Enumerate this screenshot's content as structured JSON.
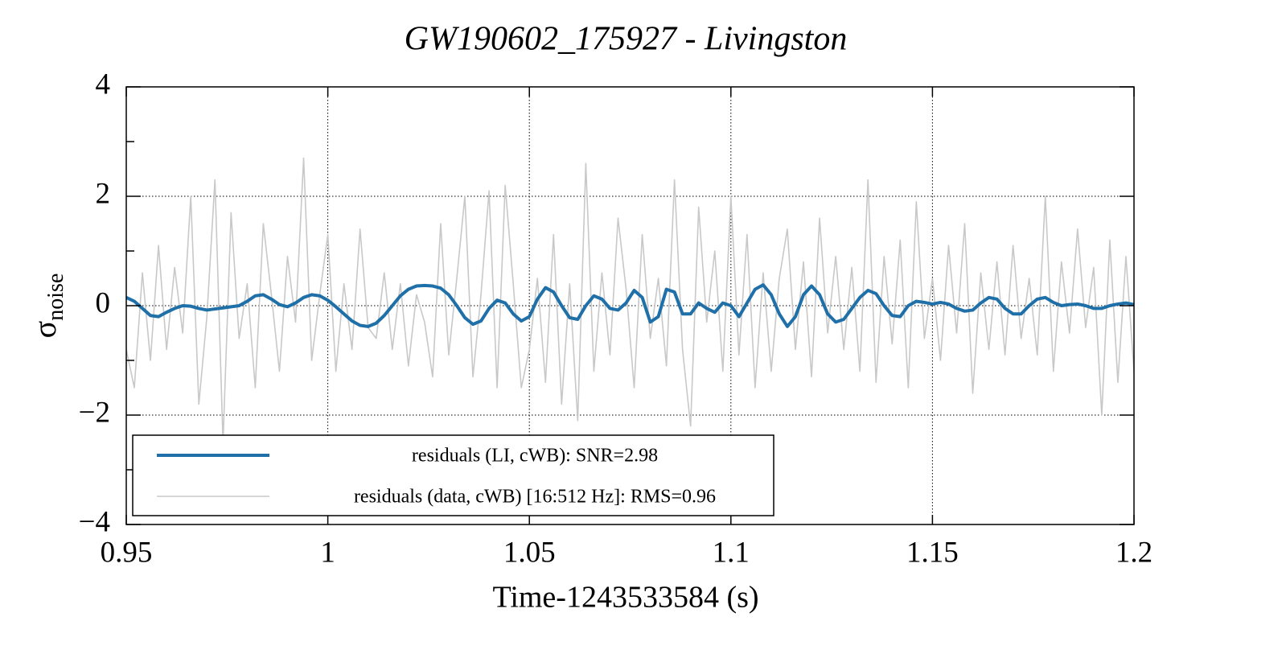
{
  "chart_data": {
    "type": "line",
    "title": "GW190602_175927 - Livingston",
    "xlabel": "Time-1243533584 (s)",
    "ylabel": "σ",
    "ylabel_subscript": "noise",
    "xlim": [
      0.95,
      1.2
    ],
    "xticks": [
      0.95,
      1,
      1.05,
      1.1,
      1.15,
      1.2
    ],
    "ylim": [
      -4,
      4
    ],
    "yticks": [
      {
        "value": -4,
        "label": "−4"
      },
      {
        "value": -2,
        "label": "−2"
      },
      0,
      2,
      4
    ],
    "yminor": [
      -3,
      -1,
      1,
      3
    ],
    "grid": true,
    "legend": "lower left",
    "x": [
      0.95,
      0.952,
      0.954,
      0.956,
      0.958,
      0.96,
      0.962,
      0.964,
      0.966,
      0.968,
      0.97,
      0.972,
      0.974,
      0.976,
      0.978,
      0.98,
      0.982,
      0.984,
      0.986,
      0.988,
      0.99,
      0.992,
      0.994,
      0.996,
      0.998,
      1.0,
      1.002,
      1.004,
      1.006,
      1.008,
      1.01,
      1.012,
      1.014,
      1.016,
      1.018,
      1.02,
      1.022,
      1.024,
      1.026,
      1.028,
      1.03,
      1.032,
      1.034,
      1.036,
      1.038,
      1.04,
      1.042,
      1.044,
      1.046,
      1.048,
      1.05,
      1.052,
      1.054,
      1.056,
      1.058,
      1.06,
      1.062,
      1.064,
      1.066,
      1.068,
      1.07,
      1.072,
      1.074,
      1.076,
      1.078,
      1.08,
      1.082,
      1.084,
      1.086,
      1.088,
      1.09,
      1.092,
      1.094,
      1.096,
      1.098,
      1.1,
      1.102,
      1.104,
      1.106,
      1.108,
      1.11,
      1.112,
      1.114,
      1.116,
      1.118,
      1.12,
      1.122,
      1.124,
      1.126,
      1.128,
      1.13,
      1.132,
      1.134,
      1.136,
      1.138,
      1.14,
      1.142,
      1.144,
      1.146,
      1.148,
      1.15,
      1.152,
      1.154,
      1.156,
      1.158,
      1.16,
      1.162,
      1.164,
      1.166,
      1.168,
      1.17,
      1.172,
      1.174,
      1.176,
      1.178,
      1.18,
      1.182,
      1.184,
      1.186,
      1.188,
      1.19,
      1.192,
      1.194,
      1.196,
      1.198,
      1.2
    ],
    "series": [
      {
        "name": "residuals (LI, cWB): SNR=2.98",
        "color": "#1f6fa8",
        "width": 4,
        "values": [
          0.15,
          0.08,
          -0.05,
          -0.18,
          -0.2,
          -0.12,
          -0.05,
          0.0,
          -0.01,
          -0.05,
          -0.08,
          -0.06,
          -0.04,
          -0.02,
          0.0,
          0.08,
          0.18,
          0.2,
          0.12,
          0.02,
          -0.02,
          0.05,
          0.15,
          0.2,
          0.18,
          0.1,
          -0.02,
          -0.15,
          -0.28,
          -0.36,
          -0.38,
          -0.32,
          -0.18,
          0.0,
          0.18,
          0.3,
          0.36,
          0.37,
          0.36,
          0.32,
          0.2,
          0.0,
          -0.22,
          -0.34,
          -0.28,
          -0.05,
          0.1,
          0.05,
          -0.15,
          -0.28,
          -0.2,
          0.12,
          0.33,
          0.25,
          0.0,
          -0.22,
          -0.25,
          0.0,
          0.18,
          0.12,
          -0.05,
          -0.08,
          0.05,
          0.28,
          0.15,
          -0.3,
          -0.2,
          0.3,
          0.25,
          -0.15,
          -0.15,
          0.05,
          -0.05,
          -0.12,
          0.05,
          0.0,
          -0.2,
          0.05,
          0.3,
          0.38,
          0.2,
          -0.15,
          -0.38,
          -0.2,
          0.2,
          0.36,
          0.2,
          -0.15,
          -0.3,
          -0.25,
          -0.05,
          0.15,
          0.28,
          0.22,
          0.0,
          -0.18,
          -0.2,
          0.0,
          0.08,
          0.06,
          0.03,
          0.06,
          0.03,
          -0.05,
          -0.1,
          -0.08,
          0.05,
          0.15,
          0.12,
          -0.05,
          -0.15,
          -0.15,
          0.0,
          0.12,
          0.15,
          0.06,
          0.0,
          0.02,
          0.03,
          0.0,
          -0.05,
          -0.05,
          0.0,
          0.03,
          0.05,
          0.02
        ]
      },
      {
        "name": "residuals (data, cWB) [16:512 Hz]: RMS=0.96",
        "color": "#c8c8c8",
        "width": 1.6,
        "values": [
          -0.8,
          -1.5,
          0.6,
          -1.0,
          1.1,
          -0.8,
          0.7,
          -0.5,
          2.0,
          -1.8,
          -0.2,
          2.3,
          -2.5,
          1.7,
          -0.6,
          0.4,
          -1.5,
          1.5,
          0.2,
          -1.2,
          0.9,
          -0.3,
          2.7,
          -1.0,
          0.2,
          1.3,
          -1.2,
          0.4,
          -0.8,
          1.4,
          -0.4,
          -0.6,
          0.6,
          -0.8,
          0.4,
          -1.1,
          0.2,
          -0.3,
          -1.3,
          1.5,
          -0.9,
          0.5,
          2.0,
          -1.3,
          0.2,
          2.1,
          -1.5,
          2.2,
          0.4,
          -1.5,
          -0.8,
          0.5,
          -1.4,
          1.3,
          -1.8,
          0.4,
          -2.1,
          2.6,
          -1.2,
          0.6,
          -0.9,
          1.6,
          0.3,
          -1.5,
          1.3,
          -0.6,
          0.5,
          -1.1,
          2.3,
          -0.8,
          -2.2,
          1.8,
          -0.3,
          1.0,
          -1.2,
          2.0,
          -0.9,
          1.3,
          -1.5,
          0.6,
          -1.2,
          0.5,
          1.4,
          -0.8,
          0.8,
          -1.3,
          1.6,
          -0.5,
          0.9,
          -0.8,
          0.7,
          -1.2,
          2.3,
          -1.4,
          0.9,
          -0.7,
          1.2,
          -1.5,
          1.9,
          -0.6,
          0.5,
          -1.0,
          1.1,
          -0.5,
          1.5,
          -1.6,
          0.6,
          -0.8,
          0.8,
          -0.9,
          1.1,
          -0.6,
          0.5,
          -0.9,
          2.0,
          -1.2,
          0.8,
          -0.5,
          1.4,
          -0.4,
          0.7,
          -2.0,
          1.2,
          -1.4,
          0.9,
          -1.2
        ]
      }
    ]
  }
}
